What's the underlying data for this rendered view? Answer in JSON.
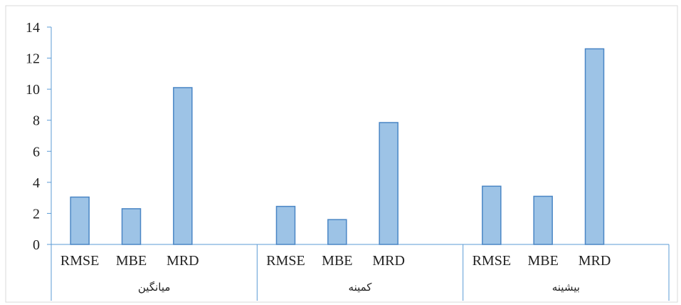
{
  "chart_data": {
    "type": "bar",
    "title": "",
    "xlabel": "",
    "ylabel": "",
    "ylim": [
      0,
      14
    ],
    "yticks": [
      0,
      2,
      4,
      6,
      8,
      10,
      12,
      14
    ],
    "grid": false,
    "legend": "none",
    "bar_color": "#9dc3e6",
    "bar_edge_color": "#4a86c5",
    "axis_color": "#5b9bd5",
    "groups": [
      {
        "label": "میانگین",
        "categories": [
          "RMSE",
          "MBE",
          "MRD"
        ],
        "values": [
          3.05,
          2.3,
          10.1
        ]
      },
      {
        "label": "کمینه",
        "categories": [
          "RMSE",
          "MBE",
          "MRD"
        ],
        "values": [
          2.45,
          1.6,
          7.85
        ]
      },
      {
        "label": "بیشینه",
        "categories": [
          "RMSE",
          "MBE",
          "MRD"
        ],
        "values": [
          3.75,
          3.1,
          12.6
        ]
      }
    ]
  }
}
